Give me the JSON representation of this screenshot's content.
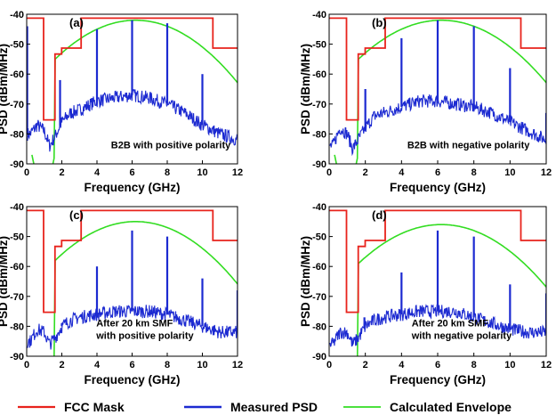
{
  "chart_data": [
    {
      "type": "line",
      "panel_label": "(a)",
      "annotation": [
        "B2B with positive polarity"
      ],
      "xlabel": "Frequency (GHz)",
      "ylabel": "PSD (dBm/MHz)",
      "xlim": [
        0,
        12
      ],
      "ylim": [
        -90,
        -40
      ],
      "xticks": [
        0,
        2,
        4,
        6,
        8,
        10,
        12
      ],
      "yticks": [
        -40,
        -50,
        -60,
        -70,
        -80,
        -90
      ],
      "envelope_peak": [
        6.2,
        -42
      ],
      "tones": [
        [
          0.03,
          -44
        ],
        [
          1.9,
          -62
        ],
        [
          4.0,
          -45
        ],
        [
          6.0,
          -42
        ],
        [
          8.0,
          -43
        ],
        [
          10.0,
          -60
        ]
      ],
      "noise_curve": [
        [
          0.2,
          -80
        ],
        [
          0.6,
          -77
        ],
        [
          1.0,
          -79
        ],
        [
          1.3,
          -84
        ],
        [
          1.6,
          -81
        ],
        [
          2.0,
          -76
        ],
        [
          2.5,
          -73
        ],
        [
          3.0,
          -72
        ],
        [
          4.0,
          -69
        ],
        [
          5.0,
          -68
        ],
        [
          6.0,
          -67
        ],
        [
          7.0,
          -68
        ],
        [
          8.0,
          -70
        ],
        [
          9.0,
          -73
        ],
        [
          10.0,
          -77
        ],
        [
          11.0,
          -80
        ],
        [
          12.0,
          -82
        ]
      ]
    },
    {
      "type": "line",
      "panel_label": "(b)",
      "annotation": [
        "B2B with negative polarity"
      ],
      "xlabel": "Frequency (GHz)",
      "ylabel": "PSD (dBm/MHz)",
      "xlim": [
        0,
        12
      ],
      "ylim": [
        -90,
        -40
      ],
      "xticks": [
        0,
        2,
        4,
        6,
        8,
        10,
        12
      ],
      "yticks": [
        -40,
        -50,
        -60,
        -70,
        -80,
        -90
      ],
      "envelope_peak": [
        6.2,
        -42
      ],
      "tones": [
        [
          2.0,
          -65
        ],
        [
          4.0,
          -48
        ],
        [
          6.0,
          -42
        ],
        [
          8.0,
          -44
        ],
        [
          10.0,
          -58
        ],
        [
          12.0,
          -73
        ]
      ],
      "noise_curve": [
        [
          0.2,
          -84
        ],
        [
          0.6,
          -78
        ],
        [
          1.0,
          -80
        ],
        [
          1.3,
          -85
        ],
        [
          1.6,
          -82
        ],
        [
          2.0,
          -78
        ],
        [
          2.5,
          -74
        ],
        [
          3.0,
          -73
        ],
        [
          4.0,
          -71
        ],
        [
          5.0,
          -69
        ],
        [
          6.0,
          -69
        ],
        [
          7.0,
          -70
        ],
        [
          8.0,
          -71
        ],
        [
          9.0,
          -73
        ],
        [
          10.0,
          -76
        ],
        [
          11.0,
          -79
        ],
        [
          12.0,
          -82
        ]
      ]
    },
    {
      "type": "line",
      "panel_label": "(c)",
      "annotation": [
        "After 20 km SMF",
        "with positive polarity"
      ],
      "xlabel": "Frequency (GHz)",
      "ylabel": "PSD (dBm/MHz)",
      "xlim": [
        0,
        12
      ],
      "ylim": [
        -90,
        -40
      ],
      "xticks": [
        0,
        2,
        4,
        6,
        8,
        10,
        12
      ],
      "yticks": [
        -40,
        -50,
        -60,
        -70,
        -80,
        -90
      ],
      "envelope_peak": [
        6.2,
        -45
      ],
      "tones": [
        [
          2.0,
          -79
        ],
        [
          4.0,
          -60
        ],
        [
          6.0,
          -48
        ],
        [
          8.0,
          -50
        ],
        [
          10.0,
          -64
        ],
        [
          12.0,
          -68
        ]
      ],
      "noise_curve": [
        [
          0.2,
          -85
        ],
        [
          0.6,
          -81
        ],
        [
          1.0,
          -82
        ],
        [
          1.3,
          -86
        ],
        [
          1.6,
          -84
        ],
        [
          2.0,
          -80
        ],
        [
          2.5,
          -78
        ],
        [
          3.0,
          -77
        ],
        [
          4.0,
          -76
        ],
        [
          5.0,
          -75
        ],
        [
          6.0,
          -75
        ],
        [
          7.0,
          -75
        ],
        [
          8.0,
          -76
        ],
        [
          9.0,
          -78
        ],
        [
          10.0,
          -80
        ],
        [
          11.0,
          -82
        ],
        [
          12.0,
          -82
        ]
      ]
    },
    {
      "type": "line",
      "panel_label": "(d)",
      "annotation": [
        "After 20 km SMF",
        "with negative polarity"
      ],
      "xlabel": "Frequency (GHz)",
      "ylabel": "PSD (dBm/MHz)",
      "xlim": [
        0,
        12
      ],
      "ylim": [
        -90,
        -40
      ],
      "xticks": [
        0,
        2,
        4,
        6,
        8,
        10,
        12
      ],
      "yticks": [
        -40,
        -50,
        -60,
        -70,
        -80,
        -90
      ],
      "envelope_peak": [
        6.2,
        -46
      ],
      "tones": [
        [
          1.95,
          -77
        ],
        [
          4.0,
          -62
        ],
        [
          6.0,
          -48
        ],
        [
          8.0,
          -50
        ],
        [
          10.0,
          -66
        ],
        [
          12.0,
          -69
        ]
      ],
      "noise_curve": [
        [
          0.2,
          -86
        ],
        [
          0.6,
          -82
        ],
        [
          1.0,
          -82
        ],
        [
          1.3,
          -86
        ],
        [
          1.6,
          -84
        ],
        [
          2.0,
          -80
        ],
        [
          2.5,
          -78
        ],
        [
          3.0,
          -77
        ],
        [
          4.0,
          -76
        ],
        [
          5.0,
          -75
        ],
        [
          6.0,
          -75
        ],
        [
          7.0,
          -75
        ],
        [
          8.0,
          -77
        ],
        [
          9.0,
          -79
        ],
        [
          10.0,
          -81
        ],
        [
          11.0,
          -82
        ],
        [
          12.0,
          -82
        ]
      ]
    }
  ],
  "fcc_mask": [
    [
      0,
      -41.3
    ],
    [
      0.96,
      -41.3
    ],
    [
      0.96,
      -75.3
    ],
    [
      1.61,
      -75.3
    ],
    [
      1.61,
      -53.3
    ],
    [
      1.99,
      -53.3
    ],
    [
      1.99,
      -51.3
    ],
    [
      3.1,
      -51.3
    ],
    [
      3.1,
      -41.3
    ],
    [
      10.6,
      -41.3
    ],
    [
      10.6,
      -51.3
    ],
    [
      12,
      -51.3
    ]
  ],
  "legend": [
    {
      "label": "FCC Mask",
      "color": "#e8231c"
    },
    {
      "label": "Measured PSD",
      "color": "#1c2ad1"
    },
    {
      "label": "Calculated Envelope",
      "color": "#33dd22"
    }
  ]
}
